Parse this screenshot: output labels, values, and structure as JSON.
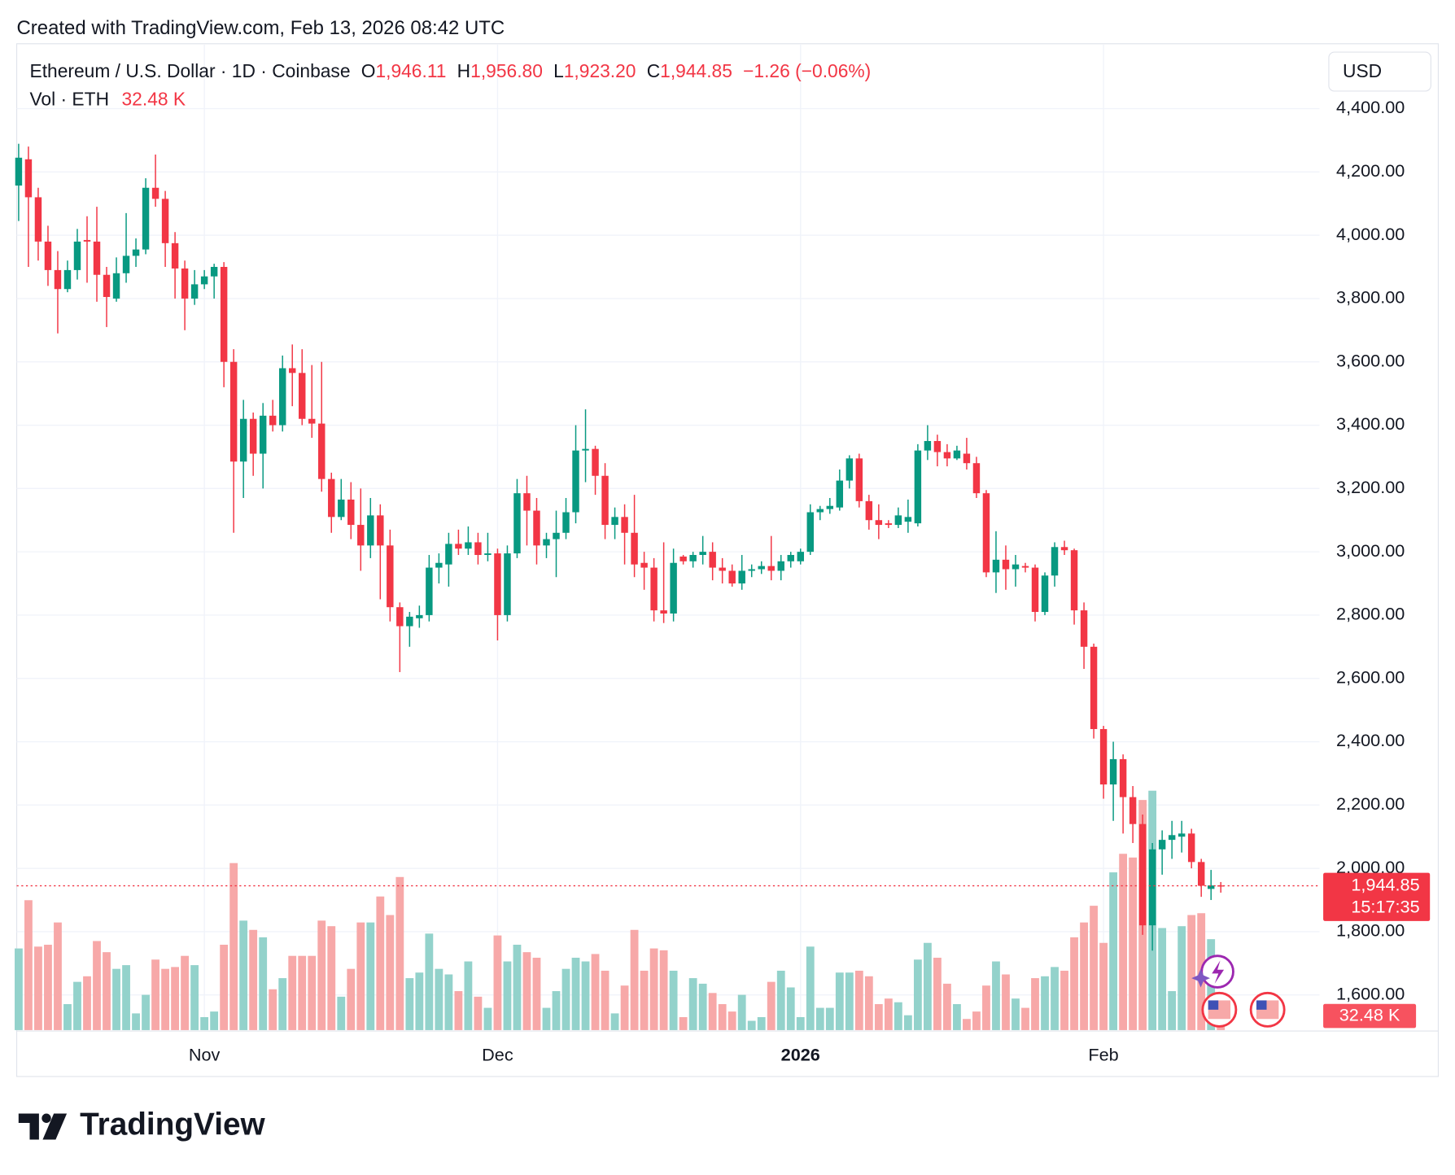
{
  "credit": "Created with TradingView.com, Feb 13, 2026 08:42 UTC",
  "logo": "TradingView",
  "currency_button": "USD",
  "legend": {
    "symbol": "Ethereum / U.S. Dollar · 1D · Coinbase",
    "ohlc": [
      {
        "key": "O",
        "value": "1,946.11"
      },
      {
        "key": "H",
        "value": "1,956.80"
      },
      {
        "key": "L",
        "value": "1,923.20"
      },
      {
        "key": "C",
        "value": "1,944.85"
      }
    ],
    "change": "−1.26 (−0.06%)",
    "volume_name": "Vol · ETH",
    "volume_value": "32.48 K"
  },
  "chart_data": {
    "type": "candlestick",
    "up_color": "#089981",
    "down_color": "#f23645",
    "volume_up_color": "#93d2cb",
    "volume_down_color": "#f7a8a8",
    "grid": true,
    "last_price_label": "1,944.85",
    "countdown": "15:17:35",
    "volume_tag": "32.48 K",
    "xlim": [
      -0.2,
      133.1
    ],
    "xticks": [
      {
        "value": 19,
        "label": "Nov"
      },
      {
        "value": 49,
        "label": "Dec"
      },
      {
        "value": 80,
        "label": "2026",
        "font_weight": "bold"
      },
      {
        "value": 111,
        "label": "Feb"
      }
    ],
    "ylim": [
      1489,
      4602
    ],
    "yticks": [
      {
        "value": 1600,
        "label": "1,600.00"
      },
      {
        "value": 1800,
        "label": "1,800.00"
      },
      {
        "value": 2000,
        "label": "2,000.00"
      },
      {
        "value": 2200,
        "label": "2,200.00"
      },
      {
        "value": 2400,
        "label": "2,400.00"
      },
      {
        "value": 2600,
        "label": "2,600.00"
      },
      {
        "value": 2800,
        "label": "2,800.00"
      },
      {
        "value": 3000,
        "label": "3,000.00"
      },
      {
        "value": 3200,
        "label": "3,200.00"
      },
      {
        "value": 3400,
        "label": "3,400.00"
      },
      {
        "value": 3600,
        "label": "3,600.00"
      },
      {
        "value": 3800,
        "label": "3,800.00"
      },
      {
        "value": 4000,
        "label": "4,000.00"
      },
      {
        "value": 4200,
        "label": "4,200.00"
      },
      {
        "value": 4400,
        "label": "4,400.00"
      }
    ],
    "x": [
      0,
      1,
      2,
      3,
      4,
      5,
      6,
      7,
      8,
      9,
      10,
      11,
      12,
      13,
      14,
      15,
      16,
      17,
      18,
      19,
      20,
      21,
      22,
      23,
      24,
      25,
      26,
      27,
      28,
      29,
      30,
      31,
      32,
      33,
      34,
      35,
      36,
      37,
      38,
      39,
      40,
      41,
      42,
      43,
      44,
      45,
      46,
      47,
      48,
      49,
      50,
      51,
      52,
      53,
      54,
      55,
      56,
      57,
      58,
      59,
      60,
      61,
      62,
      63,
      64,
      65,
      66,
      67,
      68,
      69,
      70,
      71,
      72,
      73,
      74,
      75,
      76,
      77,
      78,
      79,
      80,
      81,
      82,
      83,
      84,
      85,
      86,
      87,
      88,
      89,
      90,
      91,
      92,
      93,
      94,
      95,
      96,
      97,
      98,
      99,
      100,
      101,
      102,
      103,
      104,
      105,
      106,
      107,
      108,
      109,
      110,
      111,
      112,
      113,
      114,
      115,
      116,
      117,
      118,
      119,
      120,
      121,
      122,
      123
    ],
    "open": [
      4157,
      4240,
      4120,
      3980,
      3890,
      3830,
      3890,
      3985,
      3980,
      3875,
      3800,
      3880,
      3935,
      3955,
      4150,
      4115,
      3975,
      3895,
      3800,
      3845,
      3870,
      3900,
      3600,
      3285,
      3420,
      3310,
      3430,
      3400,
      3580,
      3565,
      3420,
      3405,
      3230,
      3110,
      3165,
      3085,
      3020,
      3115,
      3020,
      2825,
      2765,
      2790,
      2800,
      2950,
      2960,
      3025,
      3010,
      3030,
      2990,
      2995,
      2800,
      2995,
      3185,
      3130,
      3020,
      3040,
      3060,
      3125,
      3320,
      3325,
      3240,
      3085,
      3110,
      3060,
      2965,
      2950,
      2815,
      2805,
      2985,
      2970,
      2990,
      3000,
      2950,
      2940,
      2900,
      2940,
      2945,
      2955,
      2940,
      2970,
      2970,
      3000,
      3125,
      3135,
      3140,
      3225,
      3295,
      3160,
      3100,
      3090,
      3085,
      3095,
      3090,
      3320,
      3350,
      3315,
      3295,
      3310,
      3280,
      3185,
      2935,
      2975,
      2945,
      2955,
      2950,
      2810,
      2925,
      3015,
      3005,
      2815,
      2700,
      2440,
      2265,
      2345,
      2225,
      2140,
      1820,
      2060,
      2090,
      2100,
      2110,
      2020,
      1935,
      1946.11
    ],
    "high": [
      4289,
      4280,
      4150,
      4030,
      3950,
      3920,
      4020,
      4060,
      4090,
      3900,
      3930,
      4070,
      3990,
      4180,
      4255,
      4140,
      4010,
      3920,
      3890,
      3890,
      3910,
      3915,
      3640,
      3480,
      3440,
      3470,
      3480,
      3620,
      3655,
      3640,
      3590,
      3600,
      3250,
      3230,
      3220,
      3200,
      3170,
      3150,
      3070,
      2840,
      2810,
      2830,
      2990,
      2995,
      3060,
      3070,
      3080,
      3060,
      3060,
      3010,
      3020,
      3230,
      3240,
      3170,
      3060,
      3130,
      3170,
      3400,
      3450,
      3335,
      3280,
      3140,
      3150,
      3180,
      3000,
      2980,
      3030,
      3010,
      2990,
      3000,
      3050,
      3030,
      2980,
      2960,
      2990,
      2960,
      2970,
      3050,
      2990,
      3000,
      3010,
      3150,
      3145,
      3170,
      3260,
      3305,
      3310,
      3180,
      3150,
      3100,
      3140,
      3165,
      3340,
      3400,
      3370,
      3340,
      3335,
      3360,
      3300,
      3195,
      3065,
      3020,
      2990,
      2965,
      2960,
      2935,
      3030,
      3035,
      3010,
      2840,
      2710,
      2450,
      2400,
      2360,
      2260,
      2170,
      2080,
      2120,
      2150,
      2150,
      2125,
      2030,
      1995,
      1956.8
    ],
    "low": [
      4045,
      3900,
      3920,
      3840,
      3690,
      3820,
      3860,
      3850,
      3790,
      3710,
      3790,
      3850,
      3900,
      3940,
      4090,
      3900,
      3800,
      3700,
      3780,
      3830,
      3800,
      3520,
      3060,
      3170,
      3240,
      3200,
      3380,
      3380,
      3460,
      3400,
      3360,
      3190,
      3060,
      3100,
      3040,
      2940,
      2980,
      2850,
      2780,
      2620,
      2700,
      2760,
      2780,
      2900,
      2890,
      2990,
      2990,
      2960,
      2970,
      2720,
      2780,
      2980,
      3020,
      2960,
      2980,
      2920,
      3040,
      3090,
      3220,
      3180,
      3040,
      3040,
      2960,
      2920,
      2880,
      2780,
      2775,
      2780,
      2960,
      2950,
      2960,
      2910,
      2900,
      2890,
      2880,
      2920,
      2930,
      2910,
      2910,
      2950,
      2960,
      2990,
      3100,
      3120,
      3130,
      3200,
      3140,
      3070,
      3040,
      3075,
      3075,
      3060,
      3080,
      3290,
      3270,
      3270,
      3290,
      3260,
      3170,
      2920,
      2870,
      2880,
      2890,
      2935,
      2780,
      2800,
      2890,
      2990,
      2770,
      2630,
      2410,
      2220,
      2150,
      2110,
      2080,
      1790,
      1740,
      1980,
      2030,
      2050,
      2000,
      1910,
      1900,
      1923.2
    ],
    "close": [
      4245,
      4120,
      3980,
      3890,
      3830,
      3890,
      3980,
      3980,
      3875,
      3805,
      3880,
      3935,
      3955,
      4150,
      4115,
      3975,
      3895,
      3800,
      3845,
      3870,
      3900,
      3600,
      3285,
      3420,
      3310,
      3430,
      3400,
      3580,
      3565,
      3420,
      3405,
      3230,
      3110,
      3165,
      3085,
      3020,
      3115,
      3020,
      2825,
      2765,
      2795,
      2800,
      2950,
      2965,
      3025,
      3010,
      3030,
      2990,
      2995,
      2800,
      2995,
      3185,
      3130,
      3020,
      3040,
      3060,
      3125,
      3320,
      3325,
      3240,
      3085,
      3110,
      3060,
      2960,
      2950,
      2815,
      2805,
      2965,
      2970,
      2990,
      3000,
      2950,
      2940,
      2900,
      2940,
      2945,
      2955,
      2940,
      2970,
      2990,
      3000,
      3125,
      3135,
      3145,
      3225,
      3295,
      3160,
      3100,
      3085,
      3085,
      3115,
      3110,
      3320,
      3350,
      3315,
      3295,
      3320,
      3280,
      3185,
      2935,
      2975,
      2945,
      2960,
      2950,
      2810,
      2925,
      3015,
      3005,
      2815,
      2700,
      2440,
      2265,
      2345,
      2225,
      2140,
      1820,
      2060,
      2090,
      2105,
      2110,
      2020,
      1945,
      1946,
      1944.85
    ],
    "volume": [
      176,
      280,
      180,
      184,
      232,
      56,
      104,
      116,
      192,
      168,
      132,
      140,
      36,
      76,
      152,
      132,
      136,
      160,
      140,
      28,
      40,
      184,
      360,
      236,
      216,
      200,
      88,
      112,
      160,
      160,
      160,
      236,
      224,
      72,
      132,
      232,
      232,
      288,
      248,
      330,
      112,
      124,
      208,
      132,
      120,
      84,
      148,
      72,
      48,
      204,
      148,
      184,
      168,
      156,
      48,
      84,
      132,
      156,
      148,
      164,
      128,
      36,
      96,
      216,
      128,
      176,
      172,
      128,
      28,
      112,
      100,
      80,
      56,
      40,
      76,
      20,
      28,
      104,
      128,
      92,
      28,
      180,
      48,
      48,
      124,
      124,
      128,
      116,
      56,
      68,
      60,
      32,
      152,
      188,
      156,
      100,
      56,
      24,
      40,
      96,
      148,
      120,
      68,
      48,
      112,
      116,
      136,
      128,
      200,
      232,
      268,
      188,
      340,
      380,
      372,
      496,
      516,
      220,
      84,
      224,
      248,
      252,
      196,
      32.48
    ]
  }
}
